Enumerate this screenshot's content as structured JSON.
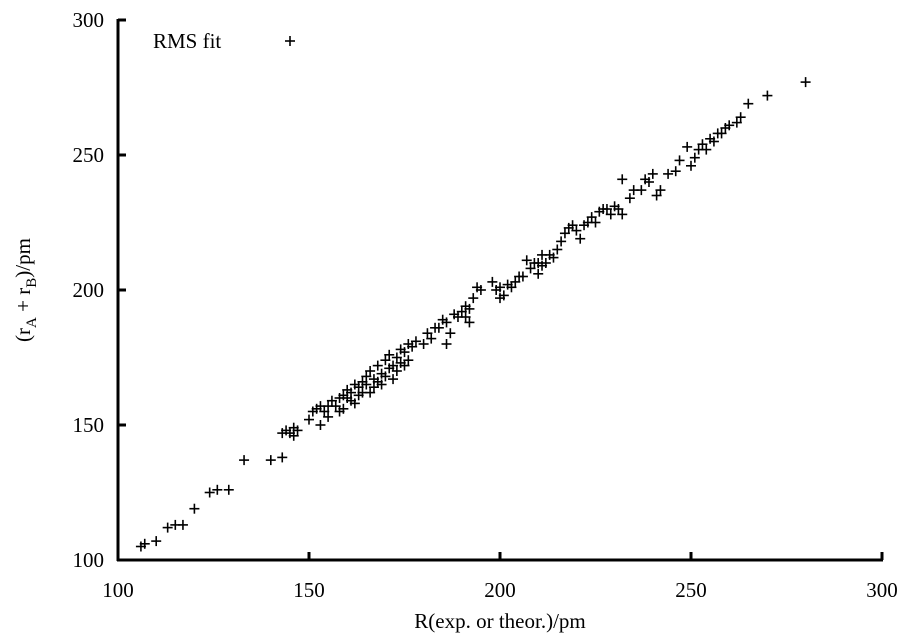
{
  "chart_data": {
    "type": "scatter",
    "title": "",
    "xlabel": "R(exp. or theor.)/pm",
    "ylabel": "(r",
    "ylabel_sub1": "A",
    "ylabel_mid": " + r",
    "ylabel_sub2": "B",
    "ylabel_end": ")/pm",
    "xlim": [
      100,
      300
    ],
    "ylim": [
      100,
      300
    ],
    "x_ticks": [
      100,
      150,
      200,
      250,
      300
    ],
    "y_ticks": [
      100,
      150,
      200,
      250,
      300
    ],
    "x_tick_labels": [
      "100",
      "150",
      "200",
      "250",
      "300"
    ],
    "y_tick_labels": [
      "100",
      "150",
      "200",
      "250",
      "300"
    ],
    "grid": false,
    "legend_position": "top-left",
    "series": [
      {
        "name": "RMS fit",
        "marker": "+",
        "color": "#000000",
        "points": [
          [
            106,
            105
          ],
          [
            107,
            106
          ],
          [
            110,
            107
          ],
          [
            113,
            112
          ],
          [
            115,
            113
          ],
          [
            117,
            113
          ],
          [
            120,
            119
          ],
          [
            124,
            125
          ],
          [
            126,
            126
          ],
          [
            129,
            126
          ],
          [
            133,
            137
          ],
          [
            140,
            137
          ],
          [
            143,
            138
          ],
          [
            143,
            147
          ],
          [
            144,
            148
          ],
          [
            145,
            147
          ],
          [
            146,
            149
          ],
          [
            146,
            146
          ],
          [
            147,
            148
          ],
          [
            150,
            152
          ],
          [
            151,
            155
          ],
          [
            152,
            156
          ],
          [
            153,
            157
          ],
          [
            153,
            150
          ],
          [
            154,
            155
          ],
          [
            155,
            157
          ],
          [
            155,
            153
          ],
          [
            156,
            159
          ],
          [
            157,
            157
          ],
          [
            158,
            160
          ],
          [
            158,
            155
          ],
          [
            159,
            156
          ],
          [
            159,
            161
          ],
          [
            160,
            163
          ],
          [
            160,
            160
          ],
          [
            161,
            159
          ],
          [
            161,
            162
          ],
          [
            162,
            158
          ],
          [
            162,
            165
          ],
          [
            163,
            161
          ],
          [
            163,
            164
          ],
          [
            164,
            166
          ],
          [
            164,
            162
          ],
          [
            165,
            168
          ],
          [
            165,
            165
          ],
          [
            166,
            162
          ],
          [
            166,
            170
          ],
          [
            167,
            167
          ],
          [
            167,
            164
          ],
          [
            168,
            166
          ],
          [
            168,
            172
          ],
          [
            169,
            169
          ],
          [
            169,
            165
          ],
          [
            170,
            168
          ],
          [
            170,
            174
          ],
          [
            171,
            171
          ],
          [
            171,
            176
          ],
          [
            172,
            172
          ],
          [
            172,
            167
          ],
          [
            173,
            170
          ],
          [
            173,
            175
          ],
          [
            174,
            173
          ],
          [
            174,
            178
          ],
          [
            175,
            172
          ],
          [
            175,
            177
          ],
          [
            176,
            180
          ],
          [
            176,
            174
          ],
          [
            177,
            179
          ],
          [
            178,
            181
          ],
          [
            180,
            180
          ],
          [
            181,
            184
          ],
          [
            182,
            182
          ],
          [
            183,
            186
          ],
          [
            184,
            186
          ],
          [
            185,
            189
          ],
          [
            186,
            188
          ],
          [
            186,
            180
          ],
          [
            187,
            184
          ],
          [
            188,
            191
          ],
          [
            189,
            190
          ],
          [
            190,
            192
          ],
          [
            191,
            190
          ],
          [
            191,
            194
          ],
          [
            192,
            193
          ],
          [
            192,
            188
          ],
          [
            193,
            197
          ],
          [
            194,
            201
          ],
          [
            195,
            200
          ],
          [
            198,
            203
          ],
          [
            199,
            200
          ],
          [
            200,
            201
          ],
          [
            200,
            197
          ],
          [
            201,
            198
          ],
          [
            202,
            202
          ],
          [
            203,
            201
          ],
          [
            204,
            203
          ],
          [
            205,
            205
          ],
          [
            206,
            205
          ],
          [
            207,
            211
          ],
          [
            208,
            208
          ],
          [
            209,
            210
          ],
          [
            210,
            210
          ],
          [
            210,
            206
          ],
          [
            211,
            213
          ],
          [
            211,
            209
          ],
          [
            212,
            210
          ],
          [
            213,
            213
          ],
          [
            214,
            212
          ],
          [
            215,
            215
          ],
          [
            216,
            218
          ],
          [
            217,
            221
          ],
          [
            218,
            223
          ],
          [
            219,
            224
          ],
          [
            220,
            222
          ],
          [
            221,
            219
          ],
          [
            222,
            224
          ],
          [
            223,
            225
          ],
          [
            224,
            227
          ],
          [
            225,
            225
          ],
          [
            226,
            229
          ],
          [
            227,
            230
          ],
          [
            228,
            230
          ],
          [
            229,
            228
          ],
          [
            230,
            231
          ],
          [
            231,
            230
          ],
          [
            232,
            241
          ],
          [
            232,
            228
          ],
          [
            234,
            234
          ],
          [
            235,
            237
          ],
          [
            237,
            237
          ],
          [
            238,
            241
          ],
          [
            239,
            240
          ],
          [
            240,
            243
          ],
          [
            241,
            235
          ],
          [
            242,
            237
          ],
          [
            244,
            243
          ],
          [
            246,
            244
          ],
          [
            247,
            248
          ],
          [
            249,
            253
          ],
          [
            250,
            246
          ],
          [
            251,
            249
          ],
          [
            252,
            252
          ],
          [
            253,
            254
          ],
          [
            254,
            252
          ],
          [
            255,
            256
          ],
          [
            256,
            255
          ],
          [
            257,
            258
          ],
          [
            258,
            258
          ],
          [
            259,
            260
          ],
          [
            260,
            261
          ],
          [
            262,
            262
          ],
          [
            263,
            264
          ],
          [
            265,
            269
          ],
          [
            270,
            272
          ],
          [
            280,
            277
          ]
        ]
      }
    ]
  }
}
